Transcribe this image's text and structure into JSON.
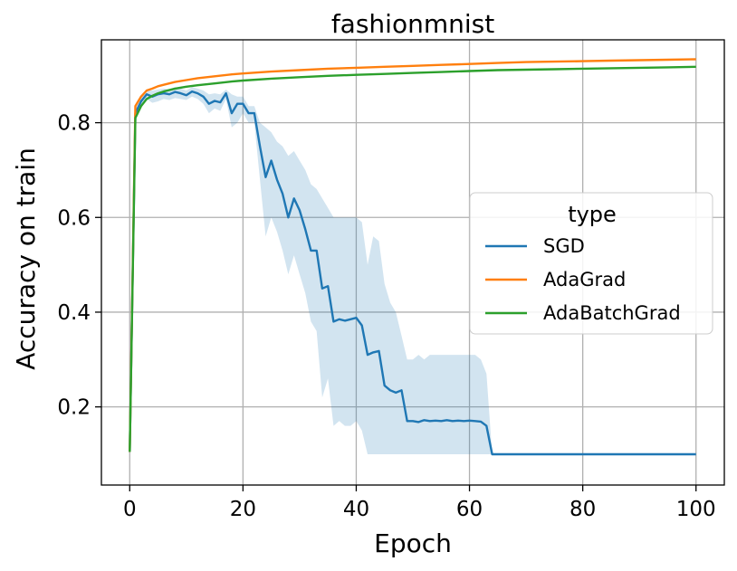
{
  "chart_data": {
    "type": "line",
    "title": "fashionmnist",
    "xlabel": "Epoch",
    "ylabel": "Accuracy on train",
    "xlim": [
      -5,
      105
    ],
    "ylim": [
      0.035,
      0.975
    ],
    "xticks": [
      0,
      20,
      40,
      60,
      80,
      100
    ],
    "yticks": [
      0.2,
      0.4,
      0.6,
      0.8
    ],
    "xtick_labels": [
      "0",
      "20",
      "40",
      "60",
      "80",
      "100"
    ],
    "ytick_labels": [
      "0.2",
      "0.4",
      "0.6",
      "0.8"
    ],
    "grid": true,
    "legend": {
      "title": "type",
      "position": "center-right"
    },
    "series": [
      {
        "name": "SGD",
        "color": "#1f77b4",
        "band_color": "#1f77b4",
        "x": [
          0,
          1,
          2,
          3,
          4,
          5,
          6,
          7,
          8,
          9,
          10,
          11,
          12,
          13,
          14,
          15,
          16,
          17,
          18,
          19,
          20,
          21,
          22,
          23,
          24,
          25,
          26,
          27,
          28,
          29,
          30,
          31,
          32,
          33,
          34,
          35,
          36,
          37,
          38,
          39,
          40,
          41,
          42,
          43,
          44,
          45,
          46,
          47,
          48,
          49,
          50,
          51,
          52,
          53,
          54,
          55,
          56,
          57,
          58,
          59,
          60,
          61,
          62,
          63,
          64,
          65,
          66,
          67,
          68,
          69,
          70,
          71,
          72,
          73,
          74,
          75,
          76,
          77,
          78,
          79,
          80,
          81,
          82,
          83,
          84,
          85,
          86,
          87,
          88,
          89,
          90,
          91,
          92,
          93,
          94,
          95,
          96,
          97,
          98,
          99,
          100
        ],
        "values": [
          0.105,
          0.82,
          0.845,
          0.86,
          0.855,
          0.86,
          0.862,
          0.86,
          0.865,
          0.862,
          0.858,
          0.866,
          0.862,
          0.855,
          0.84,
          0.846,
          0.843,
          0.862,
          0.82,
          0.84,
          0.84,
          0.82,
          0.82,
          0.75,
          0.685,
          0.72,
          0.68,
          0.65,
          0.6,
          0.64,
          0.615,
          0.575,
          0.53,
          0.53,
          0.45,
          0.455,
          0.38,
          0.385,
          0.382,
          0.385,
          0.388,
          0.372,
          0.31,
          0.315,
          0.318,
          0.245,
          0.235,
          0.23,
          0.235,
          0.17,
          0.17,
          0.168,
          0.172,
          0.17,
          0.171,
          0.17,
          0.172,
          0.17,
          0.171,
          0.17,
          0.171,
          0.17,
          0.169,
          0.16,
          0.1,
          0.1,
          0.1,
          0.1,
          0.1,
          0.1,
          0.1,
          0.1,
          0.1,
          0.1,
          0.1,
          0.1,
          0.1,
          0.1,
          0.1,
          0.1,
          0.1,
          0.1,
          0.1,
          0.1,
          0.1,
          0.1,
          0.1,
          0.1,
          0.1,
          0.1,
          0.1,
          0.1,
          0.1,
          0.1,
          0.1,
          0.1,
          0.1,
          0.1,
          0.1,
          0.1,
          0.1
        ],
        "band_x": [
          0,
          1,
          2,
          3,
          4,
          5,
          6,
          7,
          8,
          9,
          10,
          11,
          12,
          13,
          14,
          15,
          16,
          17,
          18,
          19,
          20,
          21,
          22,
          23,
          24,
          25,
          26,
          27,
          28,
          29,
          30,
          31,
          32,
          33,
          34,
          35,
          36,
          37,
          38,
          39,
          40,
          41,
          42,
          43,
          44,
          45,
          46,
          47,
          48,
          49,
          50,
          51,
          52,
          53,
          54,
          55,
          56,
          57,
          58,
          59,
          60,
          61,
          62,
          63,
          64,
          100
        ],
        "band_upper": [
          0.105,
          0.83,
          0.855,
          0.868,
          0.868,
          0.87,
          0.872,
          0.87,
          0.875,
          0.872,
          0.868,
          0.875,
          0.872,
          0.868,
          0.86,
          0.862,
          0.86,
          0.87,
          0.86,
          0.855,
          0.855,
          0.835,
          0.835,
          0.8,
          0.79,
          0.78,
          0.76,
          0.75,
          0.73,
          0.74,
          0.72,
          0.7,
          0.67,
          0.66,
          0.64,
          0.62,
          0.6,
          0.6,
          0.6,
          0.6,
          0.6,
          0.59,
          0.5,
          0.56,
          0.55,
          0.46,
          0.42,
          0.4,
          0.35,
          0.3,
          0.3,
          0.31,
          0.3,
          0.31,
          0.31,
          0.31,
          0.31,
          0.31,
          0.31,
          0.31,
          0.31,
          0.31,
          0.3,
          0.27,
          0.1,
          0.1
        ],
        "band_lower": [
          0.105,
          0.81,
          0.835,
          0.85,
          0.842,
          0.845,
          0.85,
          0.848,
          0.852,
          0.85,
          0.848,
          0.855,
          0.85,
          0.84,
          0.82,
          0.83,
          0.825,
          0.85,
          0.79,
          0.8,
          0.82,
          0.8,
          0.8,
          0.68,
          0.56,
          0.6,
          0.57,
          0.53,
          0.48,
          0.52,
          0.48,
          0.44,
          0.38,
          0.36,
          0.22,
          0.26,
          0.16,
          0.17,
          0.16,
          0.16,
          0.17,
          0.15,
          0.1,
          0.1,
          0.1,
          0.1,
          0.1,
          0.1,
          0.1,
          0.1,
          0.1,
          0.1,
          0.1,
          0.1,
          0.1,
          0.1,
          0.1,
          0.1,
          0.1,
          0.1,
          0.1,
          0.1,
          0.1,
          0.1,
          0.1,
          0.1
        ]
      },
      {
        "name": "AdaGrad",
        "color": "#ff7f0e",
        "x": [
          0,
          1,
          2,
          3,
          4,
          5,
          6,
          8,
          10,
          12,
          15,
          18,
          20,
          25,
          30,
          35,
          40,
          45,
          50,
          55,
          60,
          65,
          70,
          75,
          80,
          85,
          90,
          95,
          100
        ],
        "values": [
          0.105,
          0.835,
          0.855,
          0.868,
          0.872,
          0.877,
          0.88,
          0.886,
          0.89,
          0.894,
          0.898,
          0.902,
          0.904,
          0.908,
          0.911,
          0.914,
          0.916,
          0.918,
          0.92,
          0.922,
          0.924,
          0.926,
          0.928,
          0.929,
          0.93,
          0.931,
          0.932,
          0.933,
          0.934
        ]
      },
      {
        "name": "AdaBatchGrad",
        "color": "#2ca02c",
        "x": [
          0,
          1,
          2,
          3,
          4,
          5,
          6,
          8,
          10,
          12,
          15,
          18,
          20,
          25,
          30,
          35,
          40,
          45,
          50,
          55,
          60,
          65,
          70,
          75,
          80,
          85,
          90,
          95,
          100
        ],
        "values": [
          0.105,
          0.81,
          0.835,
          0.85,
          0.857,
          0.862,
          0.866,
          0.872,
          0.876,
          0.879,
          0.883,
          0.887,
          0.889,
          0.893,
          0.896,
          0.899,
          0.901,
          0.903,
          0.905,
          0.907,
          0.909,
          0.911,
          0.912,
          0.913,
          0.914,
          0.915,
          0.916,
          0.917,
          0.918
        ]
      }
    ]
  }
}
